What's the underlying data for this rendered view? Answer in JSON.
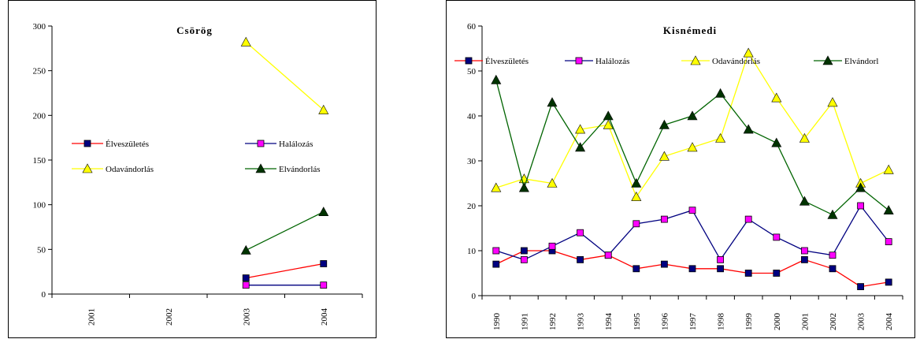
{
  "chart_data": [
    {
      "type": "line",
      "title": "Csörög",
      "categories": [
        "2001",
        "2002",
        "2003",
        "2004"
      ],
      "ylim": [
        0,
        300
      ],
      "yticks": [
        0,
        50,
        100,
        150,
        200,
        250,
        300
      ],
      "grid": false,
      "legend": "center, two columns",
      "series": [
        {
          "name": "Élveszületés",
          "color": "#ff0000",
          "marker": "square",
          "marker_fill": "#000080",
          "values": [
            null,
            null,
            18,
            34
          ]
        },
        {
          "name": "Halálozás",
          "color": "#000080",
          "marker": "square",
          "marker_fill": "#ff00ff",
          "values": [
            null,
            null,
            10,
            10
          ]
        },
        {
          "name": "Odavándorlás",
          "color": "#ffff00",
          "marker": "triangle",
          "marker_fill": "#ffff00",
          "values": [
            null,
            null,
            282,
            206
          ]
        },
        {
          "name": "Elvándorlás",
          "color": "#006400",
          "marker": "triangle",
          "marker_fill": "#003300",
          "values": [
            null,
            null,
            49,
            92
          ]
        }
      ]
    },
    {
      "type": "line",
      "title": "Kisnémedi",
      "categories": [
        "1990",
        "1991",
        "1992",
        "1993",
        "1994",
        "1995",
        "1996",
        "1997",
        "1998",
        "1999",
        "2000",
        "2001",
        "2002",
        "2003",
        "2004"
      ],
      "ylim": [
        0,
        60
      ],
      "yticks": [
        0,
        10,
        20,
        30,
        40,
        50,
        60
      ],
      "grid": false,
      "legend": "top, single row",
      "series": [
        {
          "name": "Élveszületés",
          "color": "#ff0000",
          "marker": "square",
          "marker_fill": "#000080",
          "values": [
            7,
            10,
            10,
            8,
            9,
            6,
            7,
            6,
            6,
            5,
            5,
            8,
            6,
            2,
            3
          ]
        },
        {
          "name": "Halálozás",
          "color": "#000080",
          "marker": "square",
          "marker_fill": "#ff00ff",
          "values": [
            10,
            8,
            11,
            14,
            9,
            16,
            17,
            19,
            8,
            17,
            13,
            10,
            9,
            20,
            12
          ]
        },
        {
          "name": "Odavándorlás",
          "color": "#ffff00",
          "marker": "triangle",
          "marker_fill": "#ffff00",
          "values": [
            24,
            26,
            25,
            37,
            38,
            22,
            31,
            33,
            35,
            54,
            44,
            35,
            43,
            25,
            28
          ]
        },
        {
          "name": "Elvándorl",
          "color": "#006400",
          "marker": "triangle",
          "marker_fill": "#003300",
          "values": [
            48,
            24,
            43,
            33,
            40,
            25,
            38,
            40,
            45,
            37,
            34,
            21,
            18,
            24,
            19
          ]
        }
      ]
    }
  ]
}
